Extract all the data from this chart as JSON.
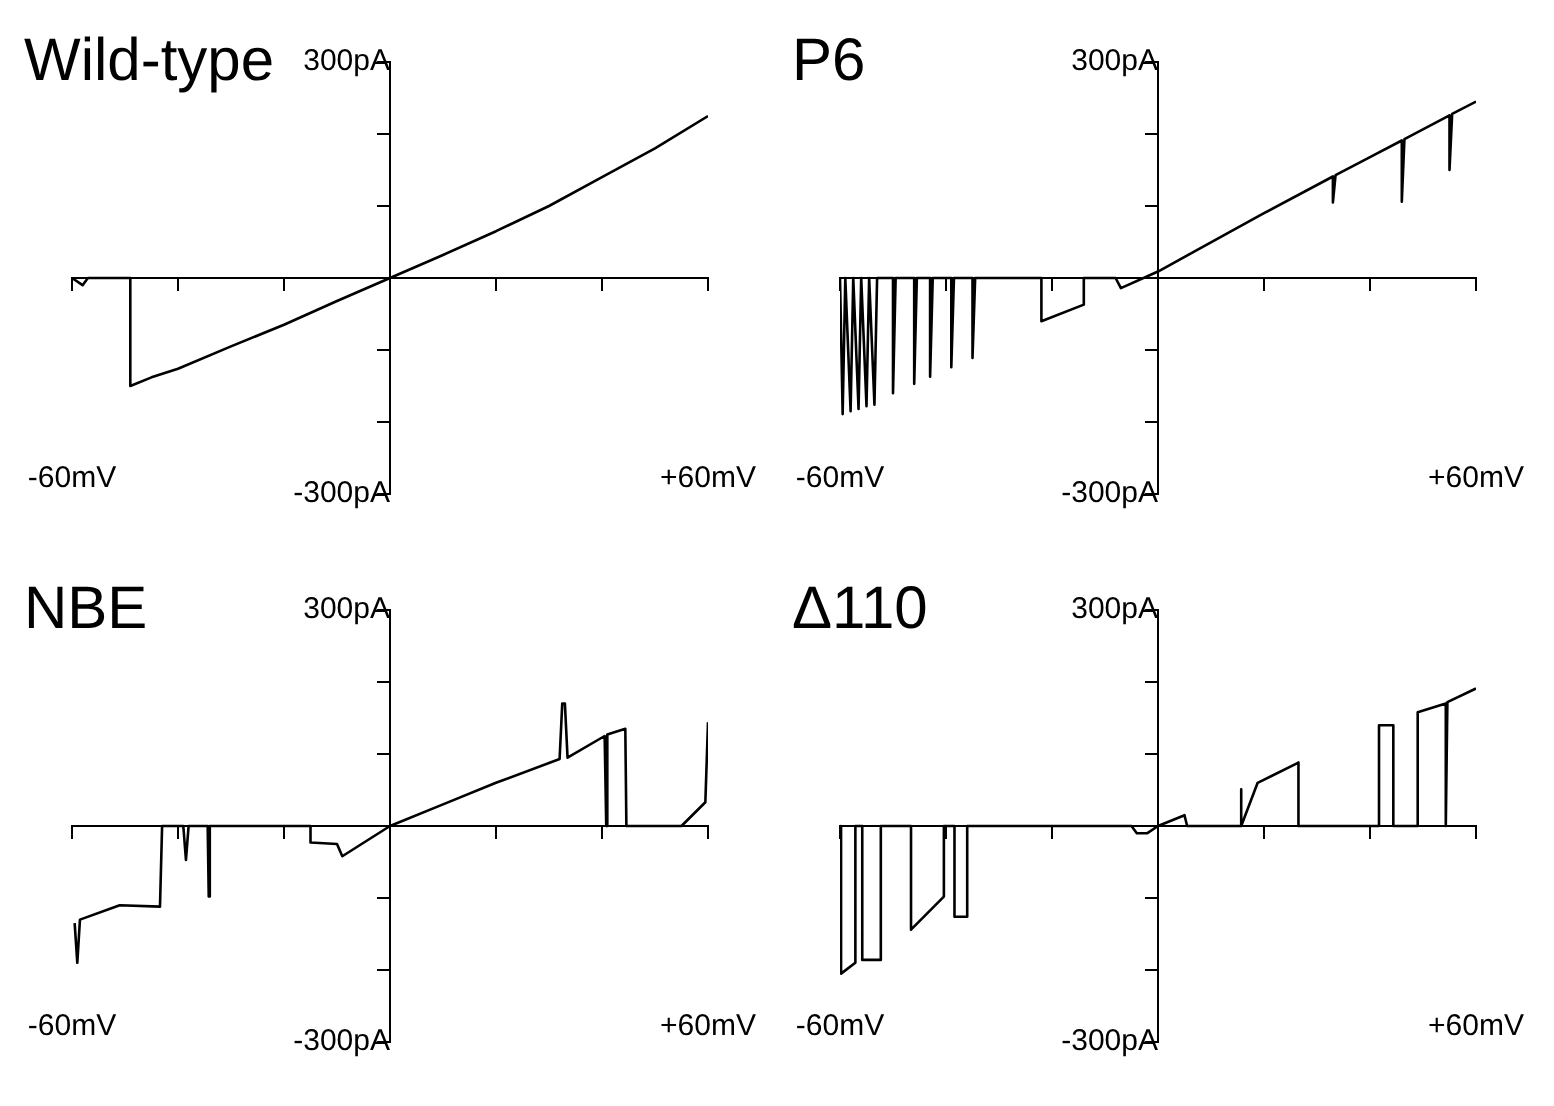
{
  "chart_data": [
    {
      "type": "line",
      "title": "Wild-type",
      "color": "#000000",
      "marker": "none",
      "line_style": "solid",
      "grid": false,
      "legend": false,
      "xlim": [
        -60,
        60
      ],
      "ylim": [
        -300,
        300
      ],
      "xticks": [
        {
          "value": -60,
          "label": "-60mV"
        },
        {
          "value": -40,
          "label": null
        },
        {
          "value": -20,
          "label": null
        },
        {
          "value": 0,
          "label": null
        },
        {
          "value": 20,
          "label": null
        },
        {
          "value": 40,
          "label": null
        },
        {
          "value": 60,
          "label": "+60mV"
        }
      ],
      "yticks": [
        {
          "value": -300,
          "label": "-300pA"
        },
        {
          "value": -200,
          "label": null
        },
        {
          "value": -100,
          "label": null
        },
        {
          "value": 100,
          "label": null
        },
        {
          "value": 200,
          "label": null
        },
        {
          "value": 300,
          "label": "300pA"
        }
      ],
      "x": [
        -60,
        -58,
        -57,
        -55,
        -49,
        -49,
        -45,
        -40,
        -30,
        -20,
        -10,
        0,
        10,
        20,
        30,
        40,
        50,
        60
      ],
      "values": [
        0,
        -10,
        0,
        0,
        0,
        -150,
        -138,
        -126,
        -95,
        -65,
        -32,
        0,
        32,
        65,
        100,
        140,
        180,
        225
      ]
    },
    {
      "type": "line",
      "title": "P6",
      "color": "#000000",
      "marker": "none",
      "line_style": "solid",
      "grid": false,
      "legend": false,
      "xlim": [
        -60,
        60
      ],
      "ylim": [
        -300,
        300
      ],
      "xticks": [
        {
          "value": -60,
          "label": "-60mV"
        },
        {
          "value": -40,
          "label": null
        },
        {
          "value": -20,
          "label": null
        },
        {
          "value": 0,
          "label": null
        },
        {
          "value": 20,
          "label": null
        },
        {
          "value": 40,
          "label": null
        },
        {
          "value": 60,
          "label": "+60mV"
        }
      ],
      "yticks": [
        {
          "value": -300,
          "label": "-300pA"
        },
        {
          "value": -200,
          "label": null
        },
        {
          "value": -100,
          "label": null
        },
        {
          "value": 100,
          "label": null
        },
        {
          "value": 200,
          "label": null
        },
        {
          "value": 300,
          "label": "300pA"
        }
      ],
      "x": [
        -60,
        -59.5,
        -59,
        -58,
        -57.5,
        -56.5,
        -56,
        -55,
        -54.5,
        -53.5,
        -53,
        -50,
        -50,
        -49.5,
        -46,
        -46,
        -45.5,
        -43,
        -43,
        -42.5,
        -39,
        -39,
        -38.5,
        -35,
        -35,
        -34.5,
        -22,
        -22,
        -14,
        -14,
        -8,
        -7,
        0,
        20,
        33,
        33,
        33.5,
        40,
        46,
        46,
        46.5,
        55,
        55,
        55.5,
        60
      ],
      "values": [
        0,
        -189,
        0,
        -185,
        0,
        -182,
        0,
        -178,
        0,
        -176,
        0,
        0,
        -160,
        0,
        0,
        -147,
        0,
        0,
        -137,
        0,
        0,
        -124,
        0,
        0,
        -111,
        0,
        0,
        -60,
        -37,
        0,
        0,
        -14,
        9,
        90,
        141,
        105,
        143,
        168,
        191,
        106,
        193,
        226,
        150,
        228,
        245
      ]
    },
    {
      "type": "line",
      "title": "NBE",
      "color": "#000000",
      "marker": "none",
      "line_style": "solid",
      "grid": false,
      "legend": false,
      "xlim": [
        -60,
        60
      ],
      "ylim": [
        -300,
        300
      ],
      "xticks": [
        {
          "value": -60,
          "label": "-60mV"
        },
        {
          "value": -40,
          "label": null
        },
        {
          "value": -20,
          "label": null
        },
        {
          "value": 0,
          "label": null
        },
        {
          "value": 20,
          "label": null
        },
        {
          "value": 40,
          "label": null
        },
        {
          "value": 60,
          "label": "+60mV"
        }
      ],
      "yticks": [
        {
          "value": -300,
          "label": "-300pA"
        },
        {
          "value": -200,
          "label": null
        },
        {
          "value": -100,
          "label": null
        },
        {
          "value": 100,
          "label": null
        },
        {
          "value": 200,
          "label": null
        },
        {
          "value": 300,
          "label": "300pA"
        }
      ],
      "x": [
        -59.5,
        -59,
        -58.5,
        -51,
        -43.4,
        -43,
        -39,
        -38.5,
        -38,
        -34.4,
        -34.2,
        -34,
        -15,
        -15,
        -10,
        -9,
        0,
        10,
        20,
        32,
        32.5,
        33,
        33.5,
        40.5,
        40.8,
        41,
        44.4,
        44.6,
        55,
        59.5,
        60
      ],
      "values": [
        -135,
        -190,
        -130,
        -110,
        -112,
        0,
        0,
        -47,
        0,
        0,
        -98,
        0,
        0,
        -23,
        -25,
        -42,
        0,
        30,
        60,
        93,
        170,
        170,
        95,
        125,
        0,
        127,
        135,
        0,
        0,
        33,
        144
      ]
    },
    {
      "type": "line",
      "title": "Δ110",
      "color": "#000000",
      "marker": "none",
      "line_style": "solid",
      "grid": false,
      "legend": false,
      "xlim": [
        -60,
        60
      ],
      "ylim": [
        -300,
        300
      ],
      "xticks": [
        {
          "value": -60,
          "label": "-60mV"
        },
        {
          "value": -40,
          "label": null
        },
        {
          "value": -20,
          "label": null
        },
        {
          "value": 0,
          "label": null
        },
        {
          "value": 20,
          "label": null
        },
        {
          "value": 40,
          "label": null
        },
        {
          "value": 60,
          "label": "+60mV"
        }
      ],
      "yticks": [
        {
          "value": -300,
          "label": "-300pA"
        },
        {
          "value": -200,
          "label": null
        },
        {
          "value": -100,
          "label": null
        },
        {
          "value": 100,
          "label": null
        },
        {
          "value": 200,
          "label": null
        },
        {
          "value": 300,
          "label": "300pA"
        }
      ],
      "x": [
        -60,
        -59.8,
        -57.1,
        -57.1,
        -55.8,
        -55.8,
        -52.3,
        -52.3,
        -46.6,
        -46.6,
        -40.4,
        -40.4,
        -38.4,
        -38.4,
        -36,
        -36,
        -5,
        -4,
        -2,
        0,
        5,
        5.5,
        15.6,
        15.6,
        15.8,
        18.8,
        18.8,
        26.5,
        26.5,
        41.7,
        41.7,
        44.4,
        44.4,
        49,
        49,
        54.3,
        54.3,
        54.6,
        60
      ],
      "values": [
        0,
        -205,
        -190,
        0,
        0,
        -186,
        -186,
        0,
        0,
        -144,
        -98,
        0,
        0,
        -126,
        -126,
        0,
        0,
        -10,
        -10,
        0,
        15,
        0,
        0,
        51,
        0,
        60,
        60,
        88,
        0,
        0,
        140,
        140,
        0,
        0,
        158,
        170,
        0,
        172,
        191
      ]
    }
  ]
}
